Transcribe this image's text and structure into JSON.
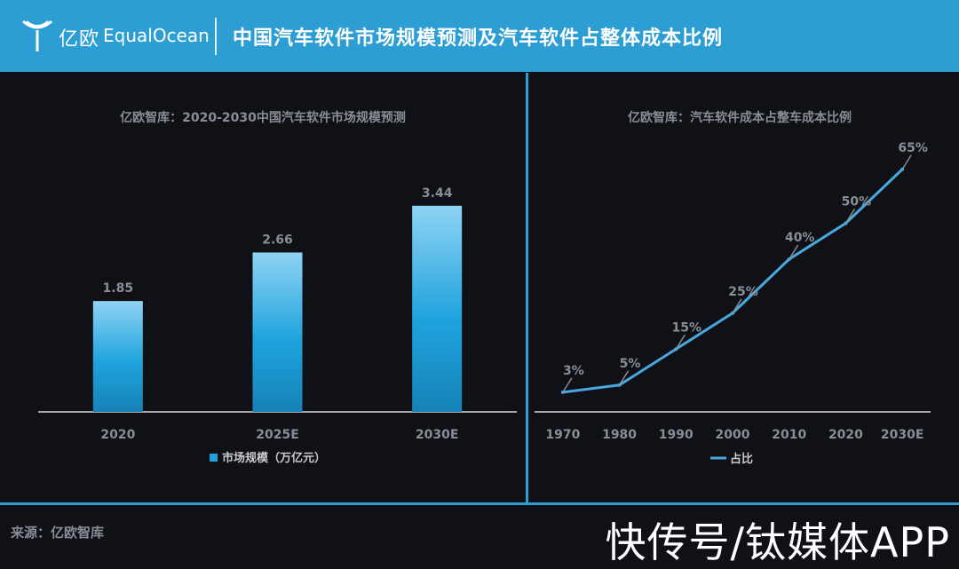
{
  "header": {
    "logo_cn": "亿欧",
    "logo_en": "EqualOcean",
    "title": "中国汽车软件市场规模预测及汽车软件占整体成本比例"
  },
  "colors": {
    "accent": "#2d9ed3",
    "background": "#0f1117",
    "bar_top": "#8fd3f4",
    "bar_bottom": "#1c8fc8",
    "line": "#4aa8e0",
    "axis_text": "#8a8d94"
  },
  "chart_data": [
    {
      "type": "bar",
      "title": "亿欧智库：2020-2030中国汽车软件市场规模预测",
      "categories": [
        "2020",
        "2025E",
        "2030E"
      ],
      "values": [
        1.85,
        2.66,
        3.44
      ],
      "value_labels": [
        "1.85",
        "2.66",
        "3.44"
      ],
      "series": [
        {
          "name": "市场规模（万亿元）",
          "values": [
            1.85,
            2.66,
            3.44
          ]
        }
      ],
      "ylim": [
        0,
        4
      ],
      "grid": false,
      "legend": "bottom"
    },
    {
      "type": "line",
      "title": "亿欧智库：汽车软件成本占整车成本比例",
      "categories": [
        "1970",
        "1980",
        "1990",
        "2000",
        "2010",
        "2020",
        "2030E"
      ],
      "values": [
        3,
        5,
        15,
        25,
        40,
        50,
        65
      ],
      "value_labels": [
        "3%",
        "5%",
        "15%",
        "25%",
        "40%",
        "50%",
        "65%"
      ],
      "series": [
        {
          "name": "占比",
          "values": [
            3,
            5,
            15,
            25,
            40,
            50,
            65
          ]
        }
      ],
      "ylim": [
        0,
        70
      ],
      "grid": false,
      "legend": "bottom"
    }
  ],
  "footer": {
    "source": "来源：亿欧智库",
    "watermark": "快传号/钛媒体APP"
  }
}
